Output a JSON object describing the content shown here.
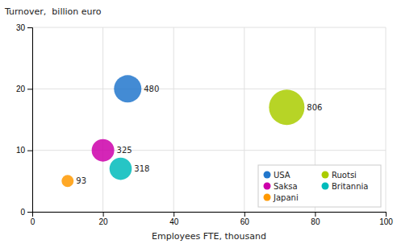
{
  "chart_data": {
    "type": "bubble",
    "xlabel": "Employees FTE, thousand",
    "ylabel": "Turnover,  billion euro",
    "series": [
      {
        "name": "USA",
        "color": "#2277cc",
        "x": [
          27
        ],
        "values": [
          20
        ],
        "sizes": [
          480
        ]
      },
      {
        "name": "Ruotsi",
        "color": "#aacc00",
        "x": [
          72
        ],
        "values": [
          17
        ],
        "sizes": [
          806
        ]
      },
      {
        "name": "Saksa",
        "color": "#cc00aa",
        "x": [
          20
        ],
        "values": [
          10
        ],
        "sizes": [
          325
        ]
      },
      {
        "name": "Britannia",
        "color": "#00bbbb",
        "x": [
          25
        ],
        "values": [
          7
        ],
        "sizes": [
          318
        ]
      },
      {
        "name": "Japani",
        "color": "#ff9900",
        "x": [
          10
        ],
        "values": [
          5
        ],
        "sizes": [
          93
        ]
      }
    ],
    "xlim": [
      0,
      100
    ],
    "ylim": [
      0,
      30
    ],
    "xticks": [
      0,
      20,
      40,
      60,
      80,
      100
    ],
    "yticks": [
      0,
      10,
      20,
      30
    ],
    "grid": true,
    "legend": "lower right",
    "data_labels": true
  }
}
